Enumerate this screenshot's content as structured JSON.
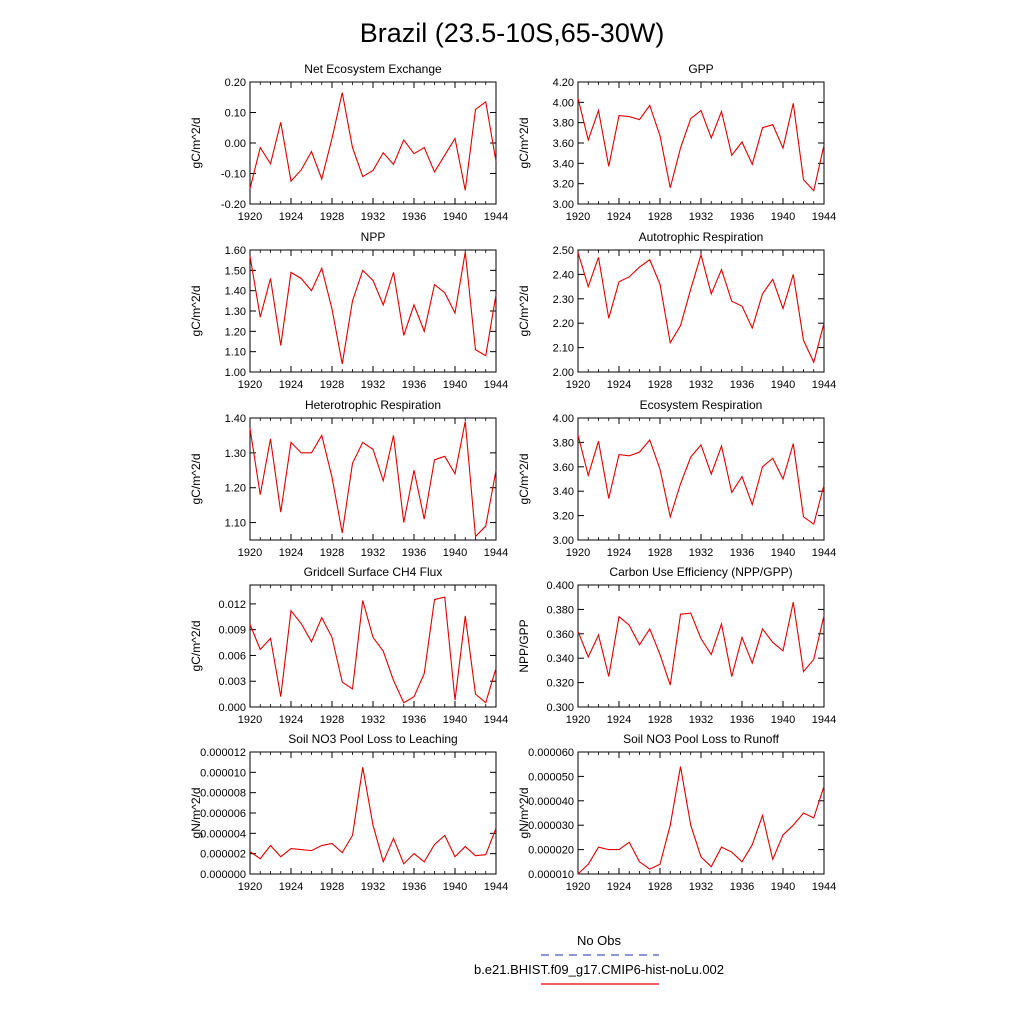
{
  "title": "Brazil (23.5-10S,65-30W)",
  "colors": {
    "model": "#e00000",
    "obs": "#4a55c8",
    "axis": "#000000"
  },
  "legend": {
    "obs_label": "No Obs",
    "model_label": "b.e21.BHIST.f09_g17.CMIP6-hist-noLu.002"
  },
  "chart_data": [
    {
      "type": "line",
      "title": "Net Ecosystem Exchange",
      "ylabel": "gC/m^2/d",
      "xlim": [
        1920,
        1944
      ],
      "ylim": [
        -0.2,
        0.2
      ],
      "xticks": [
        1920,
        1924,
        1928,
        1932,
        1936,
        1940,
        1944
      ],
      "yticks": [
        -0.2,
        -0.1,
        0.0,
        0.1,
        0.2
      ],
      "ytick_labels": [
        "-0.20",
        "-0.10",
        "0.00",
        "0.10",
        "0.20"
      ],
      "x": [
        1920,
        1921,
        1922,
        1923,
        1924,
        1925,
        1926,
        1927,
        1928,
        1929,
        1930,
        1931,
        1932,
        1933,
        1934,
        1935,
        1936,
        1937,
        1938,
        1939,
        1940,
        1941,
        1942,
        1943,
        1944
      ],
      "series": [
        {
          "values": [
            -0.15,
            -0.015,
            -0.068,
            0.068,
            -0.125,
            -0.088,
            -0.028,
            -0.118,
            0.015,
            0.165,
            -0.015,
            -0.11,
            -0.09,
            -0.032,
            -0.07,
            0.01,
            -0.035,
            -0.015,
            -0.095,
            -0.04,
            0.015,
            -0.155,
            0.11,
            0.135,
            -0.06
          ]
        }
      ]
    },
    {
      "type": "line",
      "title": "GPP",
      "ylabel": "gC/m^2/d",
      "xlim": [
        1920,
        1944
      ],
      "ylim": [
        3.0,
        4.2
      ],
      "xticks": [
        1920,
        1924,
        1928,
        1932,
        1936,
        1940,
        1944
      ],
      "yticks": [
        3.0,
        3.2,
        3.4,
        3.6,
        3.8,
        4.0,
        4.2
      ],
      "ytick_labels": [
        "3.00",
        "3.20",
        "3.40",
        "3.60",
        "3.80",
        "4.00",
        "4.20"
      ],
      "x": [
        1920,
        1921,
        1922,
        1923,
        1924,
        1925,
        1926,
        1927,
        1928,
        1929,
        1930,
        1931,
        1932,
        1933,
        1934,
        1935,
        1936,
        1937,
        1938,
        1939,
        1940,
        1941,
        1942,
        1943,
        1944
      ],
      "series": [
        {
          "values": [
            4.04,
            3.63,
            3.92,
            3.37,
            3.87,
            3.86,
            3.83,
            3.97,
            3.67,
            3.16,
            3.55,
            3.84,
            3.92,
            3.65,
            3.91,
            3.48,
            3.61,
            3.39,
            3.75,
            3.78,
            3.55,
            3.99,
            3.24,
            3.13,
            3.58
          ]
        }
      ]
    },
    {
      "type": "line",
      "title": "NPP",
      "ylabel": "gC/m^2/d",
      "xlim": [
        1920,
        1944
      ],
      "ylim": [
        1.0,
        1.6
      ],
      "xticks": [
        1920,
        1924,
        1928,
        1932,
        1936,
        1940,
        1944
      ],
      "yticks": [
        1.0,
        1.1,
        1.2,
        1.3,
        1.4,
        1.5,
        1.6
      ],
      "ytick_labels": [
        "1.00",
        "1.10",
        "1.20",
        "1.30",
        "1.40",
        "1.50",
        "1.60"
      ],
      "x": [
        1920,
        1921,
        1922,
        1923,
        1924,
        1925,
        1926,
        1927,
        1928,
        1929,
        1930,
        1931,
        1932,
        1933,
        1934,
        1935,
        1936,
        1937,
        1938,
        1939,
        1940,
        1941,
        1942,
        1943,
        1944
      ],
      "series": [
        {
          "values": [
            1.57,
            1.27,
            1.46,
            1.13,
            1.49,
            1.46,
            1.4,
            1.51,
            1.31,
            1.04,
            1.35,
            1.5,
            1.45,
            1.33,
            1.49,
            1.18,
            1.33,
            1.2,
            1.43,
            1.39,
            1.29,
            1.59,
            1.11,
            1.08,
            1.38
          ]
        }
      ]
    },
    {
      "type": "line",
      "title": "Autotrophic Respiration",
      "ylabel": "gC/m^2/d",
      "xlim": [
        1920,
        1944
      ],
      "ylim": [
        2.0,
        2.5
      ],
      "xticks": [
        1920,
        1924,
        1928,
        1932,
        1936,
        1940,
        1944
      ],
      "yticks": [
        2.0,
        2.1,
        2.2,
        2.3,
        2.4,
        2.5
      ],
      "ytick_labels": [
        "2.00",
        "2.10",
        "2.20",
        "2.30",
        "2.40",
        "2.50"
      ],
      "x": [
        1920,
        1921,
        1922,
        1923,
        1924,
        1925,
        1926,
        1927,
        1928,
        1929,
        1930,
        1931,
        1932,
        1933,
        1934,
        1935,
        1936,
        1937,
        1938,
        1939,
        1940,
        1941,
        1942,
        1943,
        1944
      ],
      "series": [
        {
          "values": [
            2.49,
            2.35,
            2.47,
            2.22,
            2.37,
            2.39,
            2.43,
            2.46,
            2.36,
            2.12,
            2.19,
            2.34,
            2.48,
            2.32,
            2.42,
            2.29,
            2.27,
            2.18,
            2.32,
            2.38,
            2.26,
            2.4,
            2.13,
            2.04,
            2.2
          ]
        }
      ]
    },
    {
      "type": "line",
      "title": "Heterotrophic Respiration",
      "ylabel": "gC/m^2/d",
      "xlim": [
        1920,
        1944
      ],
      "ylim": [
        1.05,
        1.4
      ],
      "xticks": [
        1920,
        1924,
        1928,
        1932,
        1936,
        1940,
        1944
      ],
      "yticks": [
        1.1,
        1.2,
        1.3,
        1.4
      ],
      "ytick_labels": [
        "1.10",
        "1.20",
        "1.30",
        "1.40"
      ],
      "x": [
        1920,
        1921,
        1922,
        1923,
        1924,
        1925,
        1926,
        1927,
        1928,
        1929,
        1930,
        1931,
        1932,
        1933,
        1934,
        1935,
        1936,
        1937,
        1938,
        1939,
        1940,
        1941,
        1942,
        1943,
        1944
      ],
      "series": [
        {
          "values": [
            1.37,
            1.18,
            1.34,
            1.13,
            1.33,
            1.3,
            1.3,
            1.35,
            1.23,
            1.07,
            1.27,
            1.33,
            1.31,
            1.22,
            1.35,
            1.1,
            1.25,
            1.11,
            1.28,
            1.29,
            1.24,
            1.39,
            1.06,
            1.09,
            1.25
          ]
        }
      ]
    },
    {
      "type": "line",
      "title": "Ecosystem Respiration",
      "ylabel": "gC/m^2/d",
      "xlim": [
        1920,
        1944
      ],
      "ylim": [
        3.0,
        4.0
      ],
      "xticks": [
        1920,
        1924,
        1928,
        1932,
        1936,
        1940,
        1944
      ],
      "yticks": [
        3.0,
        3.2,
        3.4,
        3.6,
        3.8,
        4.0
      ],
      "ytick_labels": [
        "3.00",
        "3.20",
        "3.40",
        "3.60",
        "3.80",
        "4.00"
      ],
      "x": [
        1920,
        1921,
        1922,
        1923,
        1924,
        1925,
        1926,
        1927,
        1928,
        1929,
        1930,
        1931,
        1932,
        1933,
        1934,
        1935,
        1936,
        1937,
        1938,
        1939,
        1940,
        1941,
        1942,
        1943,
        1944
      ],
      "series": [
        {
          "values": [
            3.86,
            3.53,
            3.81,
            3.34,
            3.7,
            3.69,
            3.72,
            3.82,
            3.58,
            3.19,
            3.46,
            3.68,
            3.78,
            3.54,
            3.77,
            3.39,
            3.52,
            3.29,
            3.6,
            3.67,
            3.5,
            3.79,
            3.19,
            3.13,
            3.45
          ]
        }
      ]
    },
    {
      "type": "line",
      "title": "Gridcell Surface CH4 Flux",
      "ylabel": "gC/m^2/d",
      "xlim": [
        1920,
        1944
      ],
      "ylim": [
        0.0,
        0.0142
      ],
      "xticks": [
        1920,
        1924,
        1928,
        1932,
        1936,
        1940,
        1944
      ],
      "yticks": [
        0.0,
        0.003,
        0.006,
        0.009,
        0.012
      ],
      "ytick_labels": [
        "0.000",
        "0.003",
        "0.006",
        "0.009",
        "0.012"
      ],
      "x": [
        1920,
        1921,
        1922,
        1923,
        1924,
        1925,
        1926,
        1927,
        1928,
        1929,
        1930,
        1931,
        1932,
        1933,
        1934,
        1935,
        1936,
        1937,
        1938,
        1939,
        1940,
        1941,
        1942,
        1943,
        1944
      ],
      "series": [
        {
          "values": [
            0.0096,
            0.0067,
            0.008,
            0.0012,
            0.0112,
            0.0097,
            0.0076,
            0.0104,
            0.0081,
            0.0029,
            0.0021,
            0.0124,
            0.0081,
            0.0065,
            0.0031,
            0.0005,
            0.0012,
            0.0039,
            0.0125,
            0.0128,
            0.0008,
            0.0106,
            0.0015,
            0.0005,
            0.0045
          ]
        }
      ]
    },
    {
      "type": "line",
      "title": "Carbon Use Efficiency (NPP/GPP)",
      "ylabel": "NPP/GPP",
      "xlim": [
        1920,
        1944
      ],
      "ylim": [
        0.3,
        0.4
      ],
      "xticks": [
        1920,
        1924,
        1928,
        1932,
        1936,
        1940,
        1944
      ],
      "yticks": [
        0.3,
        0.32,
        0.34,
        0.36,
        0.38,
        0.4
      ],
      "ytick_labels": [
        "0.300",
        "0.320",
        "0.340",
        "0.360",
        "0.380",
        "0.400"
      ],
      "x": [
        1920,
        1921,
        1922,
        1923,
        1924,
        1925,
        1926,
        1927,
        1928,
        1929,
        1930,
        1931,
        1932,
        1933,
        1934,
        1935,
        1936,
        1937,
        1938,
        1939,
        1940,
        1941,
        1942,
        1943,
        1944
      ],
      "series": [
        {
          "values": [
            0.362,
            0.341,
            0.359,
            0.325,
            0.374,
            0.367,
            0.351,
            0.364,
            0.343,
            0.318,
            0.376,
            0.377,
            0.356,
            0.343,
            0.368,
            0.325,
            0.357,
            0.336,
            0.364,
            0.353,
            0.346,
            0.386,
            0.329,
            0.339,
            0.375
          ]
        }
      ]
    },
    {
      "type": "line",
      "title": "Soil NO3 Pool Loss to Leaching",
      "ylabel": "gN/m^2/d",
      "xlim": [
        1920,
        1944
      ],
      "ylim": [
        0.0,
        1.2e-05
      ],
      "xticks": [
        1920,
        1924,
        1928,
        1932,
        1936,
        1940,
        1944
      ],
      "yticks": [
        0.0,
        2e-06,
        4e-06,
        6e-06,
        8e-06,
        1e-05,
        1.2e-05
      ],
      "ytick_labels": [
        "0.000000",
        "0.000002",
        "0.000004",
        "0.000006",
        "0.000008",
        "0.000010",
        "0.000012"
      ],
      "x": [
        1920,
        1921,
        1922,
        1923,
        1924,
        1925,
        1926,
        1927,
        1928,
        1929,
        1930,
        1931,
        1932,
        1933,
        1934,
        1935,
        1936,
        1937,
        1938,
        1939,
        1940,
        1941,
        1942,
        1943,
        1944
      ],
      "series": [
        {
          "values": [
            2.2e-06,
            1.5e-06,
            2.8e-06,
            1.7e-06,
            2.5e-06,
            2.4e-06,
            2.3e-06,
            2.8e-06,
            3e-06,
            2.1e-06,
            3.8e-06,
            1.05e-05,
            4.8e-06,
            1.2e-06,
            3.5e-06,
            1e-06,
            2e-06,
            1.2e-06,
            2.9e-06,
            3.8e-06,
            1.7e-06,
            2.7e-06,
            1.8e-06,
            1.9e-06,
            4.5e-06
          ]
        }
      ]
    },
    {
      "type": "line",
      "title": "Soil NO3 Pool Loss to Runoff",
      "ylabel": "gN/m^2/d",
      "xlim": [
        1920,
        1944
      ],
      "ylim": [
        1e-05,
        6e-05
      ],
      "xticks": [
        1920,
        1924,
        1928,
        1932,
        1936,
        1940,
        1944
      ],
      "yticks": [
        1e-05,
        2e-05,
        3e-05,
        4e-05,
        5e-05,
        6e-05
      ],
      "ytick_labels": [
        "0.000010",
        "0.000020",
        "0.000030",
        "0.000040",
        "0.000050",
        "0.000060"
      ],
      "x": [
        1920,
        1921,
        1922,
        1923,
        1924,
        1925,
        1926,
        1927,
        1928,
        1929,
        1930,
        1931,
        1932,
        1933,
        1934,
        1935,
        1936,
        1937,
        1938,
        1939,
        1940,
        1941,
        1942,
        1943,
        1944
      ],
      "series": [
        {
          "values": [
            1e-05,
            1.4e-05,
            2.1e-05,
            2e-05,
            2e-05,
            2.3e-05,
            1.5e-05,
            1.2e-05,
            1.4e-05,
            3e-05,
            5.4e-05,
            3e-05,
            1.7e-05,
            1.3e-05,
            2.1e-05,
            1.9e-05,
            1.5e-05,
            2.2e-05,
            3.4e-05,
            1.6e-05,
            2.6e-05,
            3e-05,
            3.5e-05,
            3.3e-05,
            4.6e-05
          ]
        }
      ]
    }
  ]
}
